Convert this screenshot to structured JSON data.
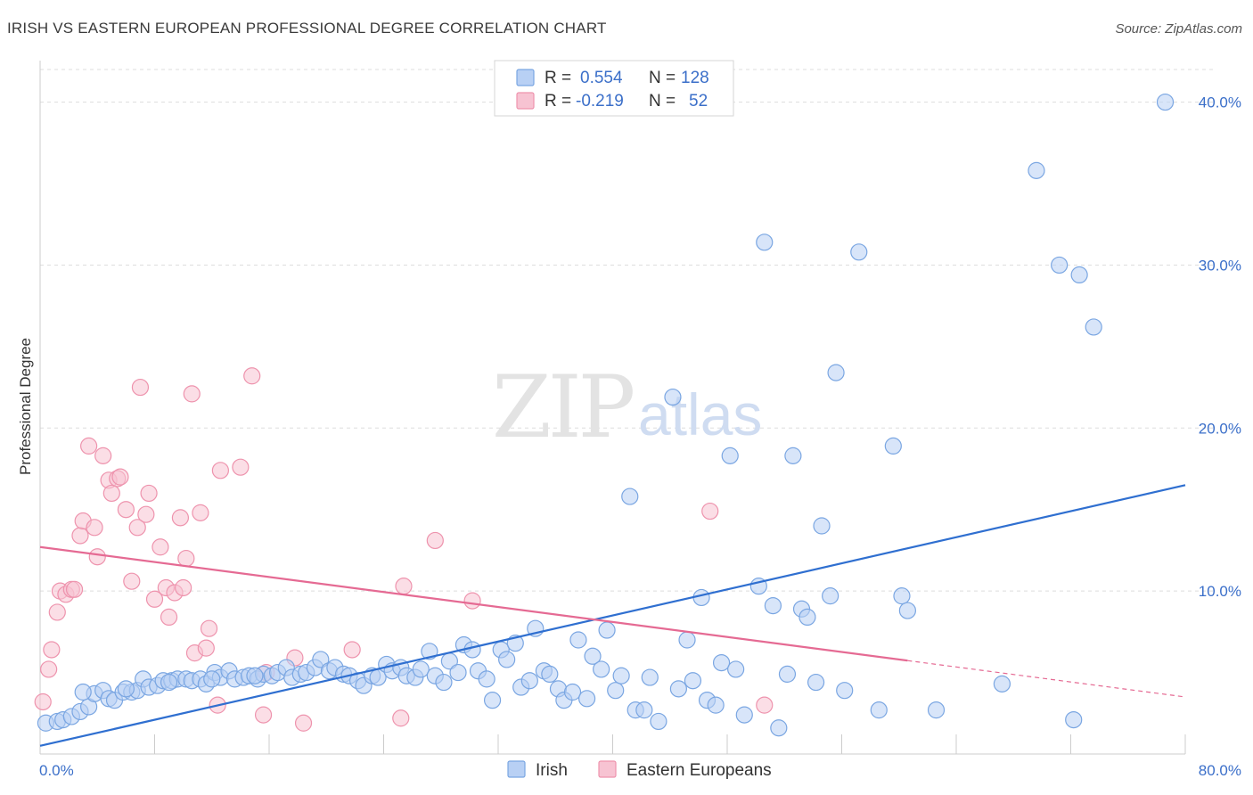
{
  "title": "IRISH VS EASTERN EUROPEAN PROFESSIONAL DEGREE CORRELATION CHART",
  "source": "Source: ZipAtlas.com",
  "watermark": {
    "zip": "ZIP",
    "atlas": "atlas"
  },
  "legend_top": {
    "rows": [
      {
        "r_label": "R =",
        "r_value": "0.554",
        "n_label": "N =",
        "n_value": "128"
      },
      {
        "r_label": "R =",
        "r_value": "-0.219",
        "n_label": "N =",
        "n_value": "52"
      }
    ]
  },
  "legend_bottom": [
    "Irish",
    "Eastern Europeans"
  ],
  "colors": {
    "irish_fill": "#b8d0f4",
    "irish_stroke": "#7aa6e2",
    "irish_line": "#2f6fd0",
    "ee_fill": "#f7c3d2",
    "ee_stroke": "#ee93ad",
    "ee_line": "#e56a93",
    "tick_text": "#3b6fc9",
    "grid": "#dddddd"
  },
  "chart_data": {
    "type": "scatter",
    "ylabel": "Professional Degree",
    "xlabel": "",
    "xlim": [
      0,
      80
    ],
    "ylim": [
      0,
      42
    ],
    "x_tick_labels": [
      {
        "value": 0,
        "label": "0.0%"
      },
      {
        "value": 80,
        "label": "80.0%"
      }
    ],
    "y_tick_labels": [
      {
        "value": 10,
        "label": "10.0%"
      },
      {
        "value": 20,
        "label": "20.0%"
      },
      {
        "value": 30,
        "label": "30.0%"
      },
      {
        "value": 40,
        "label": "40.0%"
      }
    ],
    "grid": true,
    "series": [
      {
        "name": "Irish",
        "r": 0.554,
        "n": 128,
        "trend": {
          "x": [
            0,
            80
          ],
          "y": [
            0.5,
            16.5
          ],
          "solid_until": 80
        },
        "points": [
          [
            0.4,
            1.9
          ],
          [
            1.2,
            2.0
          ],
          [
            1.6,
            2.1
          ],
          [
            2.2,
            2.3
          ],
          [
            2.8,
            2.6
          ],
          [
            3.4,
            2.9
          ],
          [
            3.8,
            3.7
          ],
          [
            4.4,
            3.9
          ],
          [
            4.8,
            3.4
          ],
          [
            5.2,
            3.3
          ],
          [
            5.8,
            3.8
          ],
          [
            6.4,
            3.8
          ],
          [
            6.8,
            3.9
          ],
          [
            7.2,
            4.6
          ],
          [
            7.6,
            4.1
          ],
          [
            8.2,
            4.2
          ],
          [
            8.6,
            4.5
          ],
          [
            9.2,
            4.5
          ],
          [
            9.6,
            4.6
          ],
          [
            10.2,
            4.6
          ],
          [
            10.6,
            4.5
          ],
          [
            11.2,
            4.6
          ],
          [
            11.6,
            4.3
          ],
          [
            12.2,
            5.0
          ],
          [
            12.6,
            4.7
          ],
          [
            13.2,
            5.1
          ],
          [
            13.6,
            4.6
          ],
          [
            14.2,
            4.7
          ],
          [
            14.6,
            4.8
          ],
          [
            15.2,
            4.6
          ],
          [
            15.6,
            4.9
          ],
          [
            16.2,
            4.8
          ],
          [
            16.6,
            5.0
          ],
          [
            17.2,
            5.3
          ],
          [
            17.6,
            4.7
          ],
          [
            18.2,
            4.9
          ],
          [
            18.6,
            5.0
          ],
          [
            19.2,
            5.3
          ],
          [
            19.6,
            5.8
          ],
          [
            20.2,
            5.1
          ],
          [
            20.6,
            5.3
          ],
          [
            21.2,
            4.9
          ],
          [
            21.6,
            4.8
          ],
          [
            22.2,
            4.5
          ],
          [
            22.6,
            4.2
          ],
          [
            23.2,
            4.8
          ],
          [
            23.6,
            4.7
          ],
          [
            24.2,
            5.5
          ],
          [
            24.6,
            5.1
          ],
          [
            25.2,
            5.3
          ],
          [
            25.6,
            4.8
          ],
          [
            26.2,
            4.7
          ],
          [
            26.6,
            5.2
          ],
          [
            27.2,
            6.3
          ],
          [
            27.6,
            4.8
          ],
          [
            28.2,
            4.4
          ],
          [
            28.6,
            5.7
          ],
          [
            29.2,
            5.0
          ],
          [
            29.6,
            6.7
          ],
          [
            30.2,
            6.4
          ],
          [
            30.6,
            5.1
          ],
          [
            31.2,
            4.6
          ],
          [
            31.6,
            3.3
          ],
          [
            32.2,
            6.4
          ],
          [
            32.6,
            5.8
          ],
          [
            33.2,
            6.8
          ],
          [
            33.6,
            4.1
          ],
          [
            34.2,
            4.5
          ],
          [
            34.6,
            7.7
          ],
          [
            35.2,
            5.1
          ],
          [
            35.6,
            4.9
          ],
          [
            36.2,
            4.0
          ],
          [
            36.6,
            3.3
          ],
          [
            37.2,
            3.8
          ],
          [
            37.6,
            7.0
          ],
          [
            38.2,
            3.4
          ],
          [
            38.6,
            6.0
          ],
          [
            39.2,
            5.2
          ],
          [
            39.6,
            7.6
          ],
          [
            40.2,
            3.9
          ],
          [
            40.6,
            4.8
          ],
          [
            41.2,
            15.8
          ],
          [
            41.6,
            2.7
          ],
          [
            42.2,
            2.7
          ],
          [
            42.6,
            4.7
          ],
          [
            43.2,
            2.0
          ],
          [
            44.2,
            21.9
          ],
          [
            44.6,
            4.0
          ],
          [
            45.2,
            7.0
          ],
          [
            45.6,
            4.5
          ],
          [
            46.2,
            9.6
          ],
          [
            46.6,
            3.3
          ],
          [
            47.2,
            3.0
          ],
          [
            47.6,
            5.6
          ],
          [
            48.2,
            18.3
          ],
          [
            48.6,
            5.2
          ],
          [
            49.2,
            2.4
          ],
          [
            50.2,
            10.3
          ],
          [
            50.6,
            31.4
          ],
          [
            51.2,
            9.1
          ],
          [
            51.6,
            1.6
          ],
          [
            52.2,
            4.9
          ],
          [
            52.6,
            18.3
          ],
          [
            53.2,
            8.9
          ],
          [
            53.6,
            8.4
          ],
          [
            54.2,
            4.4
          ],
          [
            54.6,
            14.0
          ],
          [
            55.2,
            9.7
          ],
          [
            55.6,
            23.4
          ],
          [
            56.2,
            3.9
          ],
          [
            57.2,
            30.8
          ],
          [
            58.6,
            2.7
          ],
          [
            59.6,
            18.9
          ],
          [
            60.2,
            9.7
          ],
          [
            60.6,
            8.8
          ],
          [
            62.6,
            2.7
          ],
          [
            67.2,
            4.3
          ],
          [
            69.6,
            35.8
          ],
          [
            71.2,
            30.0
          ],
          [
            72.2,
            2.1
          ],
          [
            72.6,
            29.4
          ],
          [
            73.6,
            26.2
          ],
          [
            78.6,
            40.0
          ],
          [
            3.0,
            3.8
          ],
          [
            6.0,
            4.0
          ],
          [
            9.0,
            4.4
          ],
          [
            12.0,
            4.6
          ],
          [
            15.0,
            4.8
          ]
        ]
      },
      {
        "name": "Eastern Europeans",
        "r": -0.219,
        "n": 52,
        "trend": {
          "x": [
            0,
            80
          ],
          "y": [
            12.7,
            3.5
          ],
          "solid_until": 60.6
        },
        "points": [
          [
            0.2,
            3.2
          ],
          [
            0.6,
            5.2
          ],
          [
            0.8,
            6.4
          ],
          [
            1.2,
            8.7
          ],
          [
            1.4,
            10.0
          ],
          [
            1.8,
            9.8
          ],
          [
            2.2,
            10.1
          ],
          [
            2.4,
            10.1
          ],
          [
            2.8,
            13.4
          ],
          [
            3.0,
            14.3
          ],
          [
            3.4,
            18.9
          ],
          [
            3.8,
            13.9
          ],
          [
            4.0,
            12.1
          ],
          [
            4.4,
            18.3
          ],
          [
            4.8,
            16.8
          ],
          [
            5.0,
            16.0
          ],
          [
            5.4,
            16.9
          ],
          [
            5.6,
            17.0
          ],
          [
            6.0,
            15.0
          ],
          [
            6.4,
            10.6
          ],
          [
            6.8,
            13.9
          ],
          [
            7.0,
            22.5
          ],
          [
            7.4,
            14.7
          ],
          [
            7.6,
            16.0
          ],
          [
            8.0,
            9.5
          ],
          [
            8.4,
            12.7
          ],
          [
            8.8,
            10.2
          ],
          [
            9.0,
            8.4
          ],
          [
            9.4,
            9.9
          ],
          [
            9.8,
            14.5
          ],
          [
            10.0,
            10.2
          ],
          [
            10.2,
            12.0
          ],
          [
            10.6,
            22.1
          ],
          [
            10.8,
            6.2
          ],
          [
            11.2,
            14.8
          ],
          [
            11.6,
            6.5
          ],
          [
            11.8,
            7.7
          ],
          [
            12.4,
            3.0
          ],
          [
            12.6,
            17.4
          ],
          [
            14.0,
            17.6
          ],
          [
            14.8,
            23.2
          ],
          [
            15.6,
            2.4
          ],
          [
            15.8,
            5.0
          ],
          [
            17.8,
            5.9
          ],
          [
            18.4,
            1.9
          ],
          [
            21.8,
            6.4
          ],
          [
            25.2,
            2.2
          ],
          [
            25.4,
            10.3
          ],
          [
            27.6,
            13.1
          ],
          [
            30.2,
            9.4
          ],
          [
            46.8,
            14.9
          ],
          [
            50.6,
            3.0
          ]
        ]
      }
    ]
  }
}
